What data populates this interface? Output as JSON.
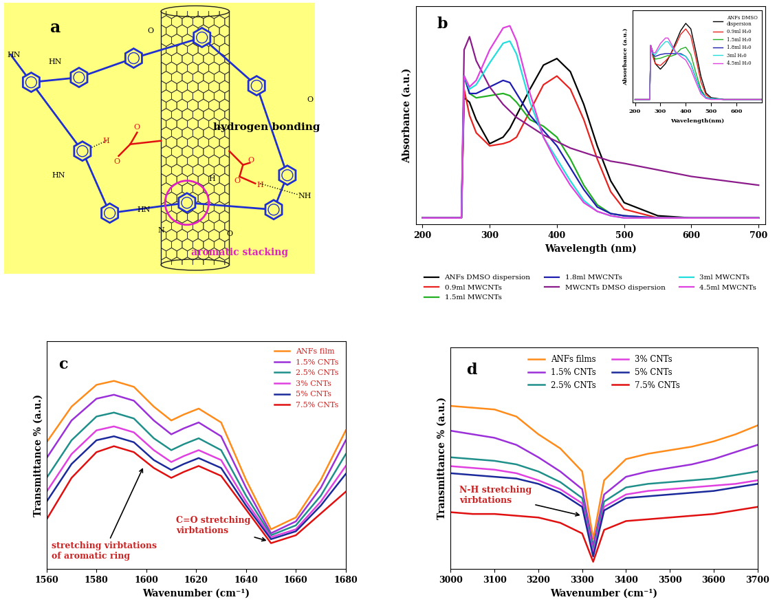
{
  "diagram": {
    "label": "a",
    "annotations": [
      "hydrogen bonding",
      "aromatic stacking"
    ],
    "atom_labels": [
      "HN",
      "HN",
      "HN",
      "HN",
      "NH",
      "H",
      "H",
      "N",
      "O",
      "O",
      "O",
      "O",
      "O",
      "O",
      "O",
      "H"
    ]
  },
  "chart_data": [
    {
      "type": "line",
      "label": "b",
      "x_label": "Wavelength (nm)",
      "y_label": "Absorbance (a.u.)",
      "x": [
        200,
        258,
        262,
        270,
        280,
        300,
        320,
        330,
        340,
        360,
        380,
        400,
        420,
        440,
        460,
        480,
        500,
        550,
        600,
        650,
        700
      ],
      "series": [
        {
          "name": "ANFs DMSO dispersion",
          "color": "#000000",
          "values": [
            0.03,
            0.03,
            0.58,
            0.56,
            0.48,
            0.37,
            0.4,
            0.44,
            0.5,
            0.62,
            0.73,
            0.76,
            0.7,
            0.55,
            0.36,
            0.2,
            0.1,
            0.04,
            0.03,
            0.03,
            0.03
          ]
        },
        {
          "name": "0.9ml MWCNTs",
          "color": "#e8231f",
          "values": [
            0.03,
            0.03,
            0.62,
            0.5,
            0.42,
            0.36,
            0.37,
            0.38,
            0.4,
            0.52,
            0.64,
            0.68,
            0.62,
            0.48,
            0.3,
            0.15,
            0.07,
            0.03,
            0.03,
            0.03,
            0.03
          ]
        },
        {
          "name": "1.5ml MWCNTs",
          "color": "#22b022",
          "values": [
            0.03,
            0.03,
            0.68,
            0.6,
            0.58,
            0.59,
            0.6,
            0.59,
            0.56,
            0.48,
            0.45,
            0.4,
            0.3,
            0.18,
            0.09,
            0.05,
            0.04,
            0.03,
            0.03,
            0.03,
            0.03
          ]
        },
        {
          "name": "1.8ml MWCNTs",
          "color": "#1c1cb0",
          "values": [
            0.03,
            0.03,
            0.68,
            0.6,
            0.6,
            0.63,
            0.66,
            0.65,
            0.6,
            0.5,
            0.43,
            0.36,
            0.26,
            0.16,
            0.08,
            0.05,
            0.04,
            0.03,
            0.03,
            0.03,
            0.03
          ]
        },
        {
          "name": "MWCNTs DMSO dispersion",
          "color": "#8b1a8b",
          "values": [
            0.03,
            0.03,
            0.8,
            0.86,
            0.75,
            0.63,
            0.55,
            0.52,
            0.49,
            0.45,
            0.41,
            0.38,
            0.35,
            0.33,
            0.31,
            0.29,
            0.28,
            0.25,
            0.22,
            0.2,
            0.18
          ]
        },
        {
          "name": "3ml MWCNTs",
          "color": "#22dddd",
          "values": [
            0.03,
            0.03,
            0.68,
            0.62,
            0.64,
            0.74,
            0.83,
            0.84,
            0.78,
            0.56,
            0.4,
            0.3,
            0.2,
            0.11,
            0.06,
            0.04,
            0.03,
            0.03,
            0.03,
            0.03,
            0.03
          ]
        },
        {
          "name": "4.5ml MWCNTs",
          "color": "#e040e0",
          "values": [
            0.03,
            0.03,
            0.68,
            0.63,
            0.66,
            0.8,
            0.9,
            0.91,
            0.84,
            0.6,
            0.4,
            0.28,
            0.18,
            0.1,
            0.06,
            0.04,
            0.03,
            0.03,
            0.03,
            0.03,
            0.03
          ]
        }
      ],
      "xlim": [
        190,
        710
      ],
      "xticks": [
        200,
        300,
        400,
        500,
        600,
        700
      ],
      "ylim": [
        0,
        1
      ],
      "tick_labels": "x",
      "legend": "below",
      "inset": {
        "type": "line",
        "x_label": "Wavelength(nm)",
        "y_label": "Absorbance (a.u.)",
        "x": [
          200,
          258,
          262,
          270,
          280,
          300,
          320,
          330,
          340,
          360,
          380,
          400,
          420,
          440,
          460,
          480,
          500,
          550,
          600,
          650,
          700
        ],
        "series": [
          {
            "name": "ANFs DMSO\ndispersion",
            "color": "#000000",
            "values": [
              0.03,
              0.03,
              0.62,
              0.55,
              0.42,
              0.36,
              0.42,
              0.47,
              0.52,
              0.65,
              0.78,
              0.86,
              0.8,
              0.55,
              0.28,
              0.1,
              0.05,
              0.03,
              0.03,
              0.03,
              0.03
            ]
          },
          {
            "name": "0.9ml H₂0",
            "color": "#e8231f",
            "values": [
              0.03,
              0.03,
              0.62,
              0.5,
              0.42,
              0.4,
              0.45,
              0.48,
              0.52,
              0.62,
              0.74,
              0.8,
              0.72,
              0.48,
              0.22,
              0.08,
              0.04,
              0.03,
              0.03,
              0.03,
              0.03
            ]
          },
          {
            "name": "1.5ml H₂0",
            "color": "#22b022",
            "values": [
              0.03,
              0.03,
              0.62,
              0.52,
              0.47,
              0.48,
              0.5,
              0.51,
              0.5,
              0.52,
              0.58,
              0.6,
              0.52,
              0.32,
              0.14,
              0.05,
              0.04,
              0.03,
              0.03,
              0.03,
              0.03
            ]
          },
          {
            "name": "1.8ml H₂0",
            "color": "#1c1cb0",
            "values": [
              0.03,
              0.03,
              0.62,
              0.52,
              0.5,
              0.52,
              0.53,
              0.53,
              0.53,
              0.53,
              0.53,
              0.5,
              0.42,
              0.26,
              0.12,
              0.05,
              0.04,
              0.03,
              0.03,
              0.03,
              0.03
            ]
          },
          {
            "name": "3ml H₂0",
            "color": "#22dddd",
            "values": [
              0.03,
              0.03,
              0.62,
              0.53,
              0.52,
              0.6,
              0.66,
              0.66,
              0.62,
              0.54,
              0.52,
              0.5,
              0.42,
              0.26,
              0.11,
              0.05,
              0.04,
              0.03,
              0.03,
              0.03,
              0.03
            ]
          },
          {
            "name": "4.5ml H₂0",
            "color": "#e040e0",
            "values": [
              0.03,
              0.03,
              0.62,
              0.54,
              0.54,
              0.64,
              0.7,
              0.7,
              0.65,
              0.55,
              0.5,
              0.46,
              0.36,
              0.22,
              0.09,
              0.04,
              0.03,
              0.03,
              0.03,
              0.03,
              0.03
            ]
          }
        ],
        "xlim": [
          190,
          700
        ],
        "xticks": [
          200,
          300,
          400,
          500,
          600
        ],
        "ylim": [
          0,
          1
        ],
        "tick_labels": "x",
        "legend": "upper right"
      }
    },
    {
      "type": "line",
      "label": "c",
      "x_label": "Wavenumber (cm⁻¹)",
      "y_label": "Transmittance % (a.u.)",
      "x": [
        1560,
        1570,
        1580,
        1587,
        1595,
        1603,
        1610,
        1615,
        1621,
        1630,
        1640,
        1650,
        1660,
        1670,
        1680
      ],
      "series": [
        {
          "name": "ANFs film",
          "color": "#ff8c1a",
          "values": [
            0.64,
            0.82,
            0.93,
            0.95,
            0.92,
            0.82,
            0.75,
            0.78,
            0.81,
            0.74,
            0.45,
            0.2,
            0.26,
            0.45,
            0.7
          ]
        },
        {
          "name": "1.5% CNTs",
          "color": "#9b30d9",
          "values": [
            0.56,
            0.75,
            0.86,
            0.88,
            0.85,
            0.75,
            0.68,
            0.71,
            0.74,
            0.67,
            0.41,
            0.18,
            0.24,
            0.41,
            0.65
          ]
        },
        {
          "name": "2.5% CNTs",
          "color": "#1f8f8a",
          "values": [
            0.46,
            0.65,
            0.77,
            0.79,
            0.76,
            0.66,
            0.6,
            0.63,
            0.66,
            0.6,
            0.37,
            0.17,
            0.22,
            0.37,
            0.58
          ]
        },
        {
          "name": "3% CNTs",
          "color": "#e040e0",
          "values": [
            0.39,
            0.58,
            0.7,
            0.72,
            0.69,
            0.6,
            0.54,
            0.57,
            0.6,
            0.55,
            0.34,
            0.16,
            0.2,
            0.34,
            0.52
          ]
        },
        {
          "name": "5% CNTs",
          "color": "#1a2a9a",
          "values": [
            0.34,
            0.53,
            0.65,
            0.67,
            0.64,
            0.55,
            0.5,
            0.53,
            0.56,
            0.51,
            0.32,
            0.15,
            0.19,
            0.32,
            0.48
          ]
        },
        {
          "name": "7.5% CNTs",
          "color": "#e01010",
          "values": [
            0.25,
            0.46,
            0.59,
            0.62,
            0.59,
            0.51,
            0.46,
            0.49,
            0.52,
            0.47,
            0.3,
            0.13,
            0.17,
            0.28,
            0.39
          ]
        }
      ],
      "xlim": [
        1560,
        1680
      ],
      "xticks": [
        1560,
        1580,
        1600,
        1620,
        1640,
        1660,
        1680
      ],
      "ylim": [
        0,
        1.15
      ],
      "tick_labels": "x",
      "legend": "upper right",
      "annotations": [
        "stretching virbtations\nof aromatic ring",
        "C=O stretching\nvirbtations"
      ]
    },
    {
      "type": "line",
      "label": "d",
      "x_label": "Wavenumber (cm⁻¹)",
      "y_label": "Transmittance % (a.u.)",
      "x": [
        3000,
        3050,
        3100,
        3150,
        3200,
        3250,
        3300,
        3325,
        3350,
        3400,
        3450,
        3500,
        3550,
        3600,
        3650,
        3700
      ],
      "series": [
        {
          "name": "ANFs films",
          "color": "#ff8c1a",
          "values": [
            0.92,
            0.91,
            0.9,
            0.86,
            0.76,
            0.68,
            0.55,
            0.17,
            0.5,
            0.62,
            0.65,
            0.67,
            0.69,
            0.72,
            0.76,
            0.81
          ]
        },
        {
          "name": "1.5% CNTs",
          "color": "#9b30d9",
          "values": [
            0.78,
            0.76,
            0.74,
            0.7,
            0.63,
            0.55,
            0.45,
            0.13,
            0.42,
            0.52,
            0.55,
            0.57,
            0.59,
            0.62,
            0.66,
            0.7
          ]
        },
        {
          "name": "2.5% CNTs",
          "color": "#1f8f8a",
          "values": [
            0.63,
            0.62,
            0.61,
            0.59,
            0.55,
            0.49,
            0.4,
            0.11,
            0.38,
            0.46,
            0.48,
            0.49,
            0.5,
            0.51,
            0.53,
            0.55
          ]
        },
        {
          "name": "3% CNTs",
          "color": "#e040e0",
          "values": [
            0.58,
            0.57,
            0.56,
            0.54,
            0.5,
            0.45,
            0.37,
            0.09,
            0.35,
            0.42,
            0.44,
            0.45,
            0.46,
            0.47,
            0.48,
            0.5
          ]
        },
        {
          "name": "5% CNTs",
          "color": "#1a2a9a",
          "values": [
            0.54,
            0.53,
            0.52,
            0.51,
            0.48,
            0.43,
            0.35,
            0.07,
            0.33,
            0.4,
            0.41,
            0.42,
            0.43,
            0.44,
            0.46,
            0.48
          ]
        },
        {
          "name": "7.5% CNTs",
          "color": "#e01010",
          "values": [
            0.32,
            0.31,
            0.31,
            0.3,
            0.29,
            0.26,
            0.2,
            0.04,
            0.22,
            0.27,
            0.28,
            0.29,
            0.3,
            0.31,
            0.33,
            0.35
          ]
        }
      ],
      "xlim": [
        3000,
        3700
      ],
      "xticks": [
        3000,
        3100,
        3200,
        3300,
        3400,
        3500,
        3600,
        3700
      ],
      "ylim": [
        0,
        1.25
      ],
      "tick_labels": "x",
      "legend": "upper center",
      "annotations": [
        "N-H stretching\nvirbtations"
      ]
    }
  ]
}
